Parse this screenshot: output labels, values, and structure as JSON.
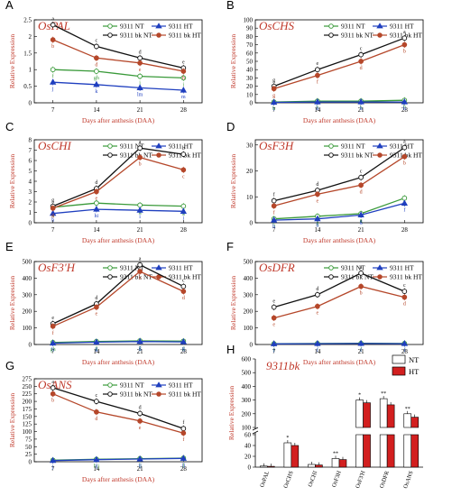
{
  "figure": {
    "x_label": "Days after anthesis (DAA)",
    "y_label": "Relative Expression",
    "legend_labels": [
      "9311 NT",
      "9311 HT",
      "9311 bk NT",
      "9311 bk HT"
    ],
    "series_colors": {
      "NT": "#3a9a3a",
      "HT": "#1f3fbf",
      "bkNT": "#111111",
      "bkHT": "#b5472a"
    }
  },
  "chart_data": [
    {
      "panel": "A",
      "gene": "OsPAL",
      "type": "line",
      "x": [
        7,
        14,
        21,
        28
      ],
      "yticks": [
        0,
        0.5,
        1,
        1.5,
        2,
        2.5
      ],
      "ylim": [
        0,
        2.5
      ],
      "series": [
        {
          "name": "9311 NT",
          "values": [
            1.0,
            0.95,
            0.8,
            0.75
          ],
          "letters": [
            "f",
            "gh",
            "i",
            "i"
          ]
        },
        {
          "name": "9311 HT",
          "values": [
            0.62,
            0.55,
            0.45,
            0.38
          ],
          "letters": [
            "j",
            "k",
            "lm",
            "m"
          ]
        },
        {
          "name": "9311 bk NT",
          "values": [
            2.35,
            1.7,
            1.35,
            1.05
          ],
          "letters": [
            "a",
            "c",
            "d",
            "e"
          ]
        },
        {
          "name": "9311 bk HT",
          "values": [
            1.9,
            1.35,
            1.2,
            0.95
          ],
          "letters": [
            "b",
            "d",
            "e",
            "h"
          ]
        }
      ]
    },
    {
      "panel": "B",
      "gene": "OsCHS",
      "type": "line",
      "x": [
        7,
        14,
        21,
        28
      ],
      "yticks": [
        0,
        10,
        20,
        30,
        40,
        50,
        60,
        70,
        80,
        90,
        100
      ],
      "ylim": [
        0,
        100
      ],
      "series": [
        {
          "name": "9311 NT",
          "values": [
            1,
            2,
            2,
            3
          ],
          "letters": [
            "h",
            "h",
            "h",
            "h"
          ]
        },
        {
          "name": "9311 HT",
          "values": [
            0.5,
            1,
            1,
            1
          ],
          "letters": [
            "i",
            "h",
            "h",
            "h"
          ]
        },
        {
          "name": "9311 bk NT",
          "values": [
            20,
            40,
            58,
            78
          ],
          "letters": [
            "g",
            "e",
            "c",
            "a"
          ]
        },
        {
          "name": "9311 bk HT",
          "values": [
            17,
            33,
            50,
            70
          ],
          "letters": [
            "g",
            "f",
            "d",
            "b"
          ]
        }
      ]
    },
    {
      "panel": "C",
      "gene": "OsCHI",
      "type": "line",
      "x": [
        7,
        14,
        21,
        28
      ],
      "yticks": [
        0,
        1,
        2,
        3,
        4,
        5,
        6,
        7,
        8
      ],
      "ylim": [
        0,
        8
      ],
      "series": [
        {
          "name": "9311 NT",
          "values": [
            1.5,
            1.9,
            1.7,
            1.6
          ],
          "letters": [
            "g",
            "f",
            "g",
            "g"
          ]
        },
        {
          "name": "9311 HT",
          "values": [
            0.9,
            1.3,
            1.2,
            1.1
          ],
          "letters": [
            "h",
            "hi",
            "i",
            "i"
          ]
        },
        {
          "name": "9311 bk NT",
          "values": [
            1.6,
            3.3,
            7.2,
            6.6
          ],
          "letters": [
            "g",
            "d",
            "a",
            "b"
          ]
        },
        {
          "name": "9311 bk HT",
          "values": [
            1.4,
            3.0,
            6.3,
            5.1
          ],
          "letters": [
            "g",
            "e",
            "b",
            "c"
          ]
        }
      ]
    },
    {
      "panel": "D",
      "gene": "OsF3H",
      "type": "line",
      "x": [
        7,
        14,
        21,
        28
      ],
      "yticks": [
        0,
        10,
        20,
        30
      ],
      "ylim": [
        0,
        32
      ],
      "series": [
        {
          "name": "9311 NT",
          "values": [
            1.5,
            2.5,
            3.5,
            9.5
          ],
          "letters": [
            "h",
            "g",
            "g",
            "e"
          ]
        },
        {
          "name": "9311 HT",
          "values": [
            1,
            1.5,
            3,
            7.5
          ],
          "letters": [
            "h",
            "h",
            "g",
            "f"
          ]
        },
        {
          "name": "9311 bk NT",
          "values": [
            8.5,
            12.5,
            17.5,
            29
          ],
          "letters": [
            "f",
            "d",
            "c",
            "a"
          ]
        },
        {
          "name": "9311 bk HT",
          "values": [
            6.5,
            11,
            14.5,
            25.5
          ],
          "letters": [
            "f",
            "e",
            "d",
            "b"
          ]
        }
      ]
    },
    {
      "panel": "E",
      "gene": "OsF3'H",
      "type": "line",
      "x": [
        7,
        14,
        21,
        28
      ],
      "yticks": [
        0,
        100,
        200,
        300,
        400,
        500
      ],
      "ylim": [
        0,
        500
      ],
      "series": [
        {
          "name": "9311 NT",
          "values": [
            12,
            18,
            22,
            20
          ],
          "letters": [
            "gh",
            "g",
            "g",
            "g"
          ]
        },
        {
          "name": "9311 HT",
          "values": [
            8,
            14,
            18,
            16
          ],
          "letters": [
            "h",
            "g",
            "g",
            "g"
          ]
        },
        {
          "name": "9311 bk NT",
          "values": [
            125,
            245,
            480,
            350
          ],
          "letters": [
            "e",
            "d",
            "a",
            "c"
          ]
        },
        {
          "name": "9311 bk HT",
          "values": [
            110,
            225,
            440,
            320
          ],
          "letters": [
            "f",
            "e",
            "b",
            "d"
          ]
        }
      ]
    },
    {
      "panel": "F",
      "gene": "OsDFR",
      "type": "line",
      "x": [
        7,
        14,
        21,
        28
      ],
      "yticks": [
        0,
        100,
        200,
        300,
        400,
        500
      ],
      "ylim": [
        0,
        500
      ],
      "series": [
        {
          "name": "9311 NT",
          "values": [
            5,
            6,
            7,
            6
          ],
          "letters": [
            "f",
            "f",
            "f",
            "f"
          ]
        },
        {
          "name": "9311 HT",
          "values": [
            4,
            5,
            6,
            5
          ],
          "letters": [
            "f",
            "f",
            "f",
            "f"
          ]
        },
        {
          "name": "9311 bk NT",
          "values": [
            225,
            300,
            430,
            320
          ],
          "letters": [
            "e",
            "d",
            "a",
            "c"
          ]
        },
        {
          "name": "9311 bk HT",
          "values": [
            160,
            230,
            350,
            285
          ],
          "letters": [
            "e",
            "e",
            "b",
            "d"
          ]
        }
      ]
    },
    {
      "panel": "G",
      "gene": "OsANS",
      "type": "line",
      "x": [
        7,
        14,
        21,
        28
      ],
      "yticks": [
        0,
        25,
        50,
        75,
        100,
        125,
        150,
        175,
        200,
        225,
        250,
        275
      ],
      "ylim": [
        0,
        275
      ],
      "series": [
        {
          "name": "9311 NT",
          "values": [
            5,
            8,
            10,
            12
          ],
          "letters": [
            "j",
            "hij",
            "ij",
            "j"
          ]
        },
        {
          "name": "9311 HT",
          "values": [
            4,
            7,
            9,
            11
          ],
          "letters": [
            "j",
            "ij",
            "ij",
            "ij"
          ]
        },
        {
          "name": "9311 bk NT",
          "values": [
            245,
            200,
            160,
            110
          ],
          "letters": [
            "a",
            "c",
            "d",
            "f"
          ]
        },
        {
          "name": "9311 bk HT",
          "values": [
            225,
            165,
            135,
            95
          ],
          "letters": [
            "b",
            "d",
            "e",
            "f"
          ]
        }
      ]
    },
    {
      "panel": "H",
      "title": "9311bk",
      "type": "bar",
      "categories": [
        "OsPAL",
        "OsCHS",
        "OsCHI",
        "OsF3H",
        "OsF3'H",
        "OsDFR",
        "OsANS"
      ],
      "series": [
        {
          "name": "NT",
          "values": [
            2,
            45,
            5,
            16,
            300,
            310,
            200
          ]
        },
        {
          "name": "HT",
          "values": [
            1.5,
            40,
            4,
            14,
            280,
            265,
            175
          ]
        }
      ],
      "significance": [
        "",
        "*",
        "",
        "**",
        "*",
        "**",
        "**"
      ],
      "yticks_lower": [
        0,
        20,
        40,
        60
      ],
      "yticks_upper": [
        100,
        200,
        300,
        400,
        500,
        600
      ],
      "ylim": [
        0,
        600
      ],
      "axis_break": true,
      "colors": {
        "NT": "#ffffff",
        "HT": "#d21f1f"
      }
    }
  ]
}
